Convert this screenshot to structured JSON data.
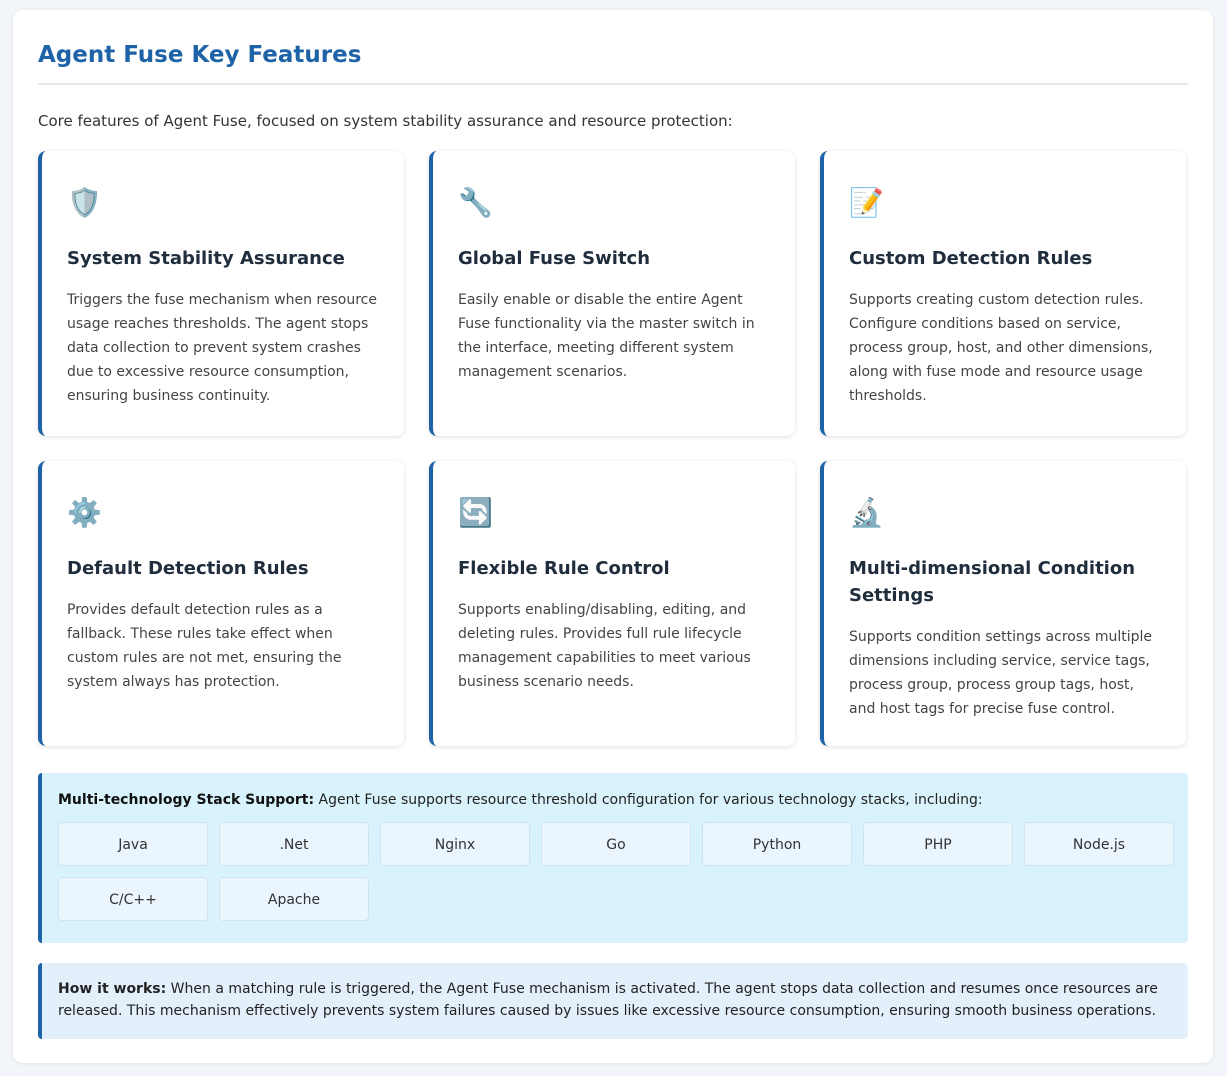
{
  "header": {
    "title": "Agent Fuse Key Features"
  },
  "intro": "Core features of Agent Fuse, focused on system stability assurance and resource protection:",
  "features": [
    {
      "icon": "shield-icon",
      "glyph": "🛡️",
      "title": "System Stability Assurance",
      "text": "Triggers the fuse mechanism when resource usage reaches thresholds. The agent stops data collection to prevent system crashes due to excessive resource consumption, ensuring business continuity."
    },
    {
      "icon": "wrench-icon",
      "glyph": "🔧",
      "title": "Global Fuse Switch",
      "text": "Easily enable or disable the entire Agent Fuse functionality via the master switch in the interface, meeting different system management scenarios."
    },
    {
      "icon": "memo-icon",
      "glyph": "📝",
      "title": "Custom Detection Rules",
      "text": "Supports creating custom detection rules. Configure conditions based on service, process group, host, and other dimensions, along with fuse mode and resource usage thresholds."
    },
    {
      "icon": "gear-icon",
      "glyph": "⚙️",
      "title": "Default Detection Rules",
      "text": "Provides default detection rules as a fallback. These rules take effect when custom rules are not met, ensuring the system always has protection."
    },
    {
      "icon": "refresh-icon",
      "glyph": "🔄",
      "title": "Flexible Rule Control",
      "text": "Supports enabling/disabling, editing, and deleting rules. Provides full rule lifecycle management capabilities to meet various business scenario needs."
    },
    {
      "icon": "microscope-icon",
      "glyph": "🔬",
      "title": "Multi-dimensional Condition Settings",
      "text": "Supports condition settings across multiple dimensions including service, service tags, process group, process group tags, host, and host tags for precise fuse control."
    }
  ],
  "stack": {
    "label": "Multi-technology Stack Support:",
    "text": " Agent Fuse supports resource threshold configuration for various technology stacks, including:",
    "items": [
      "Java",
      ".Net",
      "Nginx",
      "Go",
      "Python",
      "PHP",
      "Node.js",
      "C/C++",
      "Apache"
    ]
  },
  "how": {
    "label": "How it works:",
    "text": " When a matching rule is triggered, the Agent Fuse mechanism is activated. The agent stops data collection and resumes once resources are released. This mechanism effectively prevents system failures caused by issues like excessive resource consumption, ensuring smooth business operations."
  }
}
